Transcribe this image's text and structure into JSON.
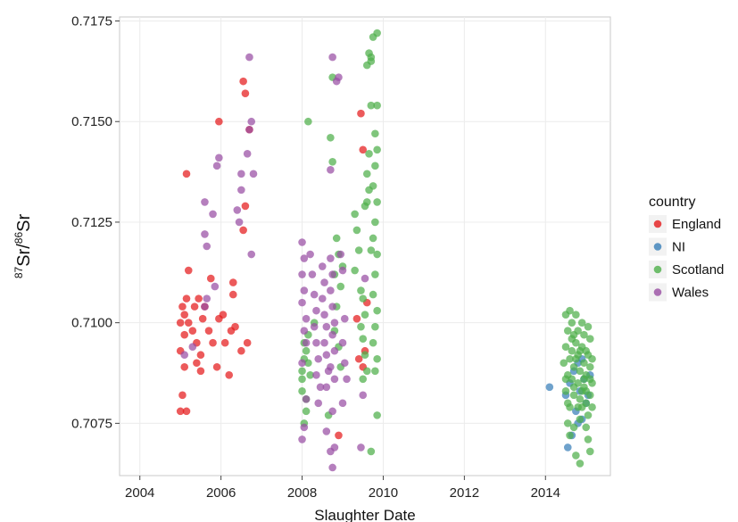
{
  "chart_data": {
    "type": "scatter",
    "xlabel": "Slaughter Date",
    "ylabel": {
      "sup1": "87",
      "base1": "Sr/",
      "sup2": "86",
      "base2": "Sr"
    },
    "xlim": [
      2003.5,
      2015.6
    ],
    "ylim": [
      0.7062,
      0.7176
    ],
    "x_ticks": [
      2004,
      2006,
      2008,
      2010,
      2012,
      2014
    ],
    "x_tick_labels": [
      "2004",
      "2006",
      "2008",
      "2010",
      "2012",
      "2014"
    ],
    "y_ticks": [
      0.7075,
      0.71,
      0.7125,
      0.715,
      0.7175
    ],
    "y_tick_labels": [
      "0.7075",
      "0.7100",
      "0.7125",
      "0.7150",
      "0.7175"
    ],
    "grid": true,
    "legend": {
      "title": "country",
      "position": "right"
    },
    "series": [
      {
        "name": "England",
        "color": "#e41a1c",
        "points": [
          [
            2005.0,
            0.7078
          ],
          [
            2005.05,
            0.7082
          ],
          [
            2005.1,
            0.7089
          ],
          [
            2005.0,
            0.7093
          ],
          [
            2005.1,
            0.7097
          ],
          [
            2005.0,
            0.71
          ],
          [
            2005.1,
            0.7102
          ],
          [
            2005.05,
            0.7104
          ],
          [
            2005.15,
            0.7106
          ],
          [
            2005.2,
            0.71
          ],
          [
            2005.3,
            0.7098
          ],
          [
            2005.35,
            0.7104
          ],
          [
            2005.45,
            0.7106
          ],
          [
            2005.4,
            0.7095
          ],
          [
            2005.5,
            0.7092
          ],
          [
            2005.5,
            0.7088
          ],
          [
            2005.4,
            0.709
          ],
          [
            2005.55,
            0.7101
          ],
          [
            2005.6,
            0.7104
          ],
          [
            2005.7,
            0.7098
          ],
          [
            2005.75,
            0.7111
          ],
          [
            2005.8,
            0.7095
          ],
          [
            2005.9,
            0.7089
          ],
          [
            2005.95,
            0.7101
          ],
          [
            2006.05,
            0.7102
          ],
          [
            2006.1,
            0.7095
          ],
          [
            2006.2,
            0.7087
          ],
          [
            2006.25,
            0.7098
          ],
          [
            2006.3,
            0.7107
          ],
          [
            2006.3,
            0.711
          ],
          [
            2006.35,
            0.7099
          ],
          [
            2006.5,
            0.7093
          ],
          [
            2006.55,
            0.7123
          ],
          [
            2006.6,
            0.7129
          ],
          [
            2006.65,
            0.7095
          ],
          [
            2006.7,
            0.7148
          ],
          [
            2006.6,
            0.7157
          ],
          [
            2006.55,
            0.716
          ],
          [
            2005.2,
            0.7113
          ],
          [
            2005.15,
            0.7137
          ],
          [
            2005.95,
            0.715
          ],
          [
            2005.15,
            0.7078
          ],
          [
            2008.9,
            0.7072
          ],
          [
            2009.45,
            0.7152
          ],
          [
            2009.5,
            0.7143
          ],
          [
            2009.4,
            0.7091
          ],
          [
            2009.5,
            0.7089
          ],
          [
            2009.6,
            0.7105
          ],
          [
            2009.55,
            0.7093
          ],
          [
            2009.35,
            0.7101
          ]
        ]
      },
      {
        "name": "NI",
        "color": "#377eb8",
        "points": [
          [
            2014.1,
            0.7084
          ],
          [
            2014.5,
            0.7082
          ],
          [
            2014.6,
            0.7085
          ],
          [
            2014.7,
            0.7088
          ],
          [
            2014.75,
            0.7078
          ],
          [
            2014.8,
            0.7075
          ],
          [
            2014.85,
            0.7083
          ],
          [
            2014.9,
            0.7091
          ],
          [
            2014.95,
            0.7086
          ],
          [
            2015.0,
            0.708
          ],
          [
            2015.1,
            0.7087
          ],
          [
            2014.65,
            0.7072
          ],
          [
            2014.55,
            0.7069
          ],
          [
            2015.05,
            0.7082
          ],
          [
            2014.9,
            0.7076
          ],
          [
            2014.8,
            0.709
          ]
        ]
      },
      {
        "name": "Scotland",
        "color": "#4daf4a",
        "points": [
          [
            2008.0,
            0.7086
          ],
          [
            2008.0,
            0.7088
          ],
          [
            2008.05,
            0.7091
          ],
          [
            2008.1,
            0.7093
          ],
          [
            2008.0,
            0.7083
          ],
          [
            2008.1,
            0.7081
          ],
          [
            2008.05,
            0.7095
          ],
          [
            2008.15,
            0.7097
          ],
          [
            2008.1,
            0.7078
          ],
          [
            2008.05,
            0.7075
          ],
          [
            2008.15,
            0.709
          ],
          [
            2008.2,
            0.7087
          ],
          [
            2008.15,
            0.715
          ],
          [
            2008.3,
            0.71
          ],
          [
            2008.7,
            0.7146
          ],
          [
            2008.75,
            0.714
          ],
          [
            2008.85,
            0.7121
          ],
          [
            2008.9,
            0.7117
          ],
          [
            2008.8,
            0.7112
          ],
          [
            2008.95,
            0.7109
          ],
          [
            2008.85,
            0.7104
          ],
          [
            2008.8,
            0.7098
          ],
          [
            2008.9,
            0.7094
          ],
          [
            2008.75,
            0.7161
          ],
          [
            2008.65,
            0.7077
          ],
          [
            2009.0,
            0.7114
          ],
          [
            2008.95,
            0.7089
          ],
          [
            2009.3,
            0.7127
          ],
          [
            2009.35,
            0.7123
          ],
          [
            2009.4,
            0.7118
          ],
          [
            2009.3,
            0.7113
          ],
          [
            2009.45,
            0.7108
          ],
          [
            2009.5,
            0.7106
          ],
          [
            2009.55,
            0.7102
          ],
          [
            2009.45,
            0.7099
          ],
          [
            2009.5,
            0.7096
          ],
          [
            2009.55,
            0.7092
          ],
          [
            2009.6,
            0.7088
          ],
          [
            2009.5,
            0.7086
          ],
          [
            2009.6,
            0.7137
          ],
          [
            2009.65,
            0.7133
          ],
          [
            2009.6,
            0.713
          ],
          [
            2009.55,
            0.7129
          ],
          [
            2009.65,
            0.7167
          ],
          [
            2009.6,
            0.7164
          ],
          [
            2009.7,
            0.7166
          ],
          [
            2009.75,
            0.7171
          ],
          [
            2009.85,
            0.7172
          ],
          [
            2009.7,
            0.7154
          ],
          [
            2009.85,
            0.7154
          ],
          [
            2009.8,
            0.7147
          ],
          [
            2009.85,
            0.7143
          ],
          [
            2009.8,
            0.7139
          ],
          [
            2009.75,
            0.7134
          ],
          [
            2009.85,
            0.713
          ],
          [
            2009.8,
            0.7125
          ],
          [
            2009.75,
            0.7121
          ],
          [
            2009.85,
            0.7117
          ],
          [
            2009.8,
            0.7112
          ],
          [
            2009.75,
            0.7107
          ],
          [
            2009.85,
            0.7103
          ],
          [
            2009.8,
            0.7099
          ],
          [
            2009.75,
            0.7095
          ],
          [
            2009.85,
            0.7091
          ],
          [
            2009.8,
            0.7088
          ],
          [
            2009.85,
            0.7077
          ],
          [
            2009.7,
            0.7068
          ],
          [
            2009.7,
            0.7165
          ],
          [
            2009.65,
            0.7142
          ],
          [
            2009.7,
            0.7118
          ],
          [
            2014.5,
            0.7102
          ],
          [
            2014.55,
            0.7098
          ],
          [
            2014.5,
            0.7094
          ],
          [
            2014.6,
            0.7091
          ],
          [
            2014.55,
            0.7087
          ],
          [
            2014.5,
            0.7083
          ],
          [
            2014.6,
            0.7079
          ],
          [
            2014.55,
            0.7075
          ],
          [
            2014.6,
            0.7103
          ],
          [
            2014.65,
            0.71
          ],
          [
            2014.7,
            0.7097
          ],
          [
            2014.65,
            0.7093
          ],
          [
            2014.7,
            0.7089
          ],
          [
            2014.65,
            0.7086
          ],
          [
            2014.7,
            0.7082
          ],
          [
            2014.75,
            0.7102
          ],
          [
            2014.8,
            0.7098
          ],
          [
            2014.75,
            0.7095
          ],
          [
            2014.8,
            0.7092
          ],
          [
            2014.85,
            0.7088
          ],
          [
            2014.8,
            0.7085
          ],
          [
            2014.85,
            0.7081
          ],
          [
            2014.9,
            0.7079
          ],
          [
            2014.85,
            0.7076
          ],
          [
            2014.9,
            0.71
          ],
          [
            2014.95,
            0.7097
          ],
          [
            2014.9,
            0.7094
          ],
          [
            2014.95,
            0.709
          ],
          [
            2015.0,
            0.7087
          ],
          [
            2014.95,
            0.7084
          ],
          [
            2015.0,
            0.708
          ],
          [
            2015.05,
            0.7077
          ],
          [
            2015.0,
            0.7074
          ],
          [
            2015.05,
            0.7099
          ],
          [
            2015.1,
            0.7096
          ],
          [
            2015.05,
            0.7092
          ],
          [
            2015.1,
            0.7089
          ],
          [
            2015.15,
            0.7085
          ],
          [
            2015.1,
            0.7082
          ],
          [
            2015.15,
            0.7079
          ],
          [
            2015.05,
            0.7071
          ],
          [
            2014.75,
            0.7067
          ],
          [
            2014.85,
            0.7065
          ],
          [
            2015.1,
            0.7068
          ],
          [
            2014.6,
            0.7072
          ],
          [
            2014.7,
            0.7074
          ],
          [
            2014.45,
            0.709
          ],
          [
            2014.5,
            0.7086
          ],
          [
            2014.65,
            0.7096
          ],
          [
            2014.75,
            0.7091
          ],
          [
            2014.85,
            0.7093
          ],
          [
            2014.95,
            0.7086
          ],
          [
            2015.0,
            0.7093
          ],
          [
            2015.1,
            0.7086
          ],
          [
            2014.55,
            0.708
          ],
          [
            2014.7,
            0.7084
          ],
          [
            2014.8,
            0.7079
          ],
          [
            2014.9,
            0.7083
          ],
          [
            2015.0,
            0.7083
          ],
          [
            2015.15,
            0.7091
          ]
        ]
      },
      {
        "name": "Wales",
        "color": "#984ea3",
        "points": [
          [
            2005.1,
            0.7092
          ],
          [
            2005.3,
            0.7094
          ],
          [
            2005.6,
            0.7104
          ],
          [
            2005.65,
            0.7106
          ],
          [
            2005.6,
            0.7122
          ],
          [
            2005.65,
            0.7119
          ],
          [
            2005.6,
            0.713
          ],
          [
            2005.8,
            0.7127
          ],
          [
            2005.85,
            0.7109
          ],
          [
            2005.9,
            0.7139
          ],
          [
            2005.95,
            0.7141
          ],
          [
            2006.4,
            0.7128
          ],
          [
            2006.45,
            0.7125
          ],
          [
            2006.5,
            0.7133
          ],
          [
            2006.5,
            0.7137
          ],
          [
            2006.65,
            0.7142
          ],
          [
            2006.7,
            0.7148
          ],
          [
            2006.75,
            0.715
          ],
          [
            2006.7,
            0.7166
          ],
          [
            2006.75,
            0.7117
          ],
          [
            2006.8,
            0.7137
          ],
          [
            2008.0,
            0.712
          ],
          [
            2008.05,
            0.7116
          ],
          [
            2008.0,
            0.7112
          ],
          [
            2008.05,
            0.7108
          ],
          [
            2008.0,
            0.7105
          ],
          [
            2008.1,
            0.7101
          ],
          [
            2008.05,
            0.7098
          ],
          [
            2008.1,
            0.7095
          ],
          [
            2008.0,
            0.709
          ],
          [
            2008.05,
            0.7074
          ],
          [
            2008.0,
            0.7071
          ],
          [
            2008.1,
            0.7081
          ],
          [
            2008.2,
            0.7117
          ],
          [
            2008.25,
            0.7112
          ],
          [
            2008.3,
            0.7107
          ],
          [
            2008.35,
            0.7103
          ],
          [
            2008.3,
            0.7099
          ],
          [
            2008.35,
            0.7095
          ],
          [
            2008.4,
            0.7091
          ],
          [
            2008.35,
            0.7087
          ],
          [
            2008.45,
            0.7084
          ],
          [
            2008.4,
            0.708
          ],
          [
            2008.5,
            0.7114
          ],
          [
            2008.55,
            0.711
          ],
          [
            2008.5,
            0.7106
          ],
          [
            2008.55,
            0.7102
          ],
          [
            2008.6,
            0.7099
          ],
          [
            2008.55,
            0.7095
          ],
          [
            2008.6,
            0.7092
          ],
          [
            2008.65,
            0.7088
          ],
          [
            2008.6,
            0.7084
          ],
          [
            2008.7,
            0.7116
          ],
          [
            2008.75,
            0.7112
          ],
          [
            2008.7,
            0.7108
          ],
          [
            2008.75,
            0.7104
          ],
          [
            2008.8,
            0.71
          ],
          [
            2008.75,
            0.7097
          ],
          [
            2008.8,
            0.7093
          ],
          [
            2008.7,
            0.7089
          ],
          [
            2008.8,
            0.7086
          ],
          [
            2008.7,
            0.7068
          ],
          [
            2008.75,
            0.7064
          ],
          [
            2008.8,
            0.7069
          ],
          [
            2008.75,
            0.7078
          ],
          [
            2008.7,
            0.7138
          ],
          [
            2008.75,
            0.7166
          ],
          [
            2008.85,
            0.716
          ],
          [
            2008.9,
            0.7161
          ],
          [
            2008.95,
            0.7117
          ],
          [
            2009.0,
            0.7113
          ],
          [
            2009.05,
            0.7101
          ],
          [
            2009.0,
            0.7095
          ],
          [
            2009.05,
            0.709
          ],
          [
            2009.1,
            0.7086
          ],
          [
            2009.0,
            0.708
          ],
          [
            2009.45,
            0.7069
          ],
          [
            2009.5,
            0.7082
          ],
          [
            2009.55,
            0.7111
          ],
          [
            2008.6,
            0.7073
          ]
        ]
      }
    ]
  }
}
